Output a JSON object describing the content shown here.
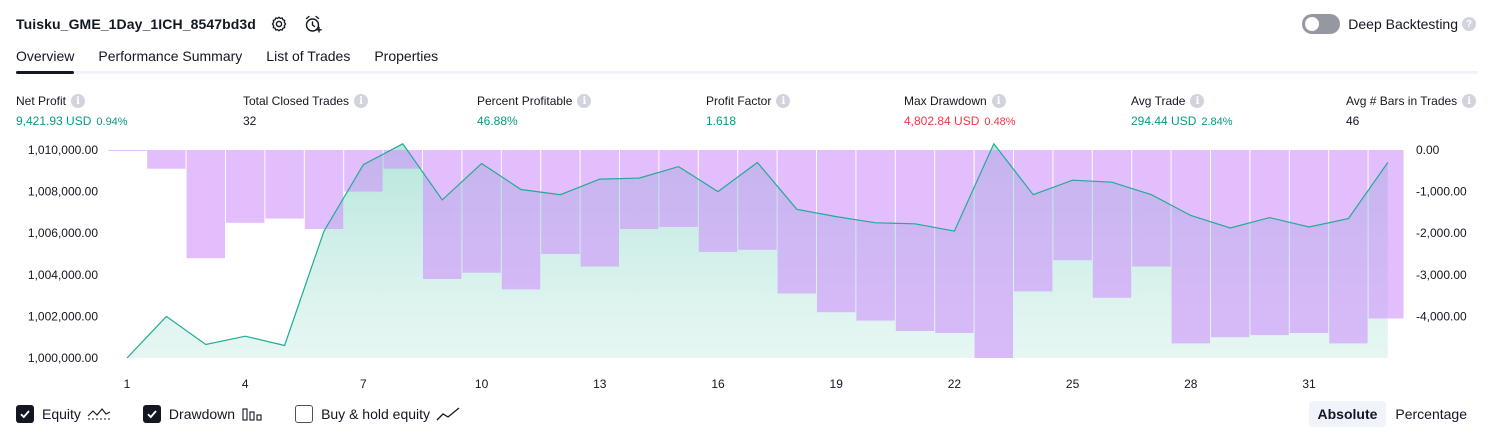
{
  "header": {
    "title": "Tuisku_GME_1Day_1ICH_8547bd3d",
    "settings_icon": "gear-icon",
    "alert_icon": "alarm-clock-plus-icon"
  },
  "deep_backtesting": {
    "label": "Deep Backtesting",
    "enabled": false,
    "help": "?"
  },
  "tabs": [
    {
      "label": "Overview",
      "active": true
    },
    {
      "label": "Performance Summary",
      "active": false
    },
    {
      "label": "List of Trades",
      "active": false
    },
    {
      "label": "Properties",
      "active": false
    }
  ],
  "metrics": {
    "net_profit": {
      "label": "Net Profit",
      "value": "9,421.93 USD",
      "pct": "0.94%"
    },
    "total_closed_trades": {
      "label": "Total Closed Trades",
      "value": "32"
    },
    "percent_profitable": {
      "label": "Percent Profitable",
      "value": "46.88%"
    },
    "profit_factor": {
      "label": "Profit Factor",
      "value": "1.618"
    },
    "max_drawdown": {
      "label": "Max Drawdown",
      "value": "4,802.84 USD",
      "pct": "0.48%"
    },
    "avg_trade": {
      "label": "Avg Trade",
      "value": "294.44 USD",
      "pct": "2.84%"
    },
    "avg_bars": {
      "label": "Avg # Bars in Trades",
      "value": "46"
    }
  },
  "info_glyph": "i",
  "chart_data": {
    "type": "area",
    "x": [
      1,
      2,
      3,
      4,
      5,
      6,
      7,
      8,
      9,
      10,
      11,
      12,
      13,
      14,
      15,
      16,
      17,
      18,
      19,
      20,
      21,
      22,
      23,
      24,
      25,
      26,
      27,
      28,
      29,
      30,
      31,
      32,
      33
    ],
    "x_ticks": [
      "1",
      "4",
      "7",
      "10",
      "13",
      "16",
      "19",
      "22",
      "25",
      "28",
      "31"
    ],
    "series": [
      {
        "name": "Equity",
        "axis": "left",
        "values": [
          1000000,
          1002000,
          1000650,
          1001050,
          1000600,
          1006100,
          1009300,
          1010300,
          1007600,
          1009350,
          1008100,
          1007850,
          1008600,
          1008650,
          1009200,
          1008000,
          1009400,
          1007150,
          1006800,
          1006500,
          1006450,
          1006100,
          1010300,
          1007850,
          1008550,
          1008450,
          1007850,
          1006850,
          1006250,
          1006750,
          1006300,
          1006700,
          1009400
        ]
      },
      {
        "name": "Drawdown",
        "axis": "right",
        "values": [
          0,
          -450,
          -2600,
          -1750,
          -1650,
          -1900,
          -1000,
          -450,
          -3100,
          -2950,
          -3350,
          -2500,
          -2800,
          -1900,
          -1850,
          -2450,
          -2400,
          -3450,
          -3900,
          -4100,
          -4350,
          -4400,
          -5000,
          -3400,
          -2650,
          -3550,
          -2800,
          -4650,
          -4500,
          -4450,
          -4400,
          -4650,
          -4050
        ]
      }
    ],
    "ylim_left": [
      1000000,
      1010000
    ],
    "ylim_right": [
      -5000,
      0
    ],
    "y_ticks_left": [
      "1,000,000.00",
      "1,002,000.00",
      "1,004,000.00",
      "1,006,000.00",
      "1,008,000.00",
      "1,010,000.00"
    ],
    "y_ticks_right": [
      "0.00",
      "-1,000.00",
      "-2,000.00",
      "-3,000.00",
      "-4,000.00"
    ],
    "colors": {
      "equity_line": "#22ab94",
      "equity_fill": "#d3f0ea",
      "drawdown_bar": "#ce93fb"
    }
  },
  "legend": [
    {
      "label": "Equity",
      "checked": true,
      "icon": "equity-line-icon"
    },
    {
      "label": "Drawdown",
      "checked": true,
      "icon": "bars-icon"
    },
    {
      "label": "Buy & hold equity",
      "checked": false,
      "icon": "trend-line-icon"
    }
  ],
  "view_mode": {
    "absolute": "Absolute",
    "percentage": "Percentage",
    "selected": "Absolute"
  }
}
